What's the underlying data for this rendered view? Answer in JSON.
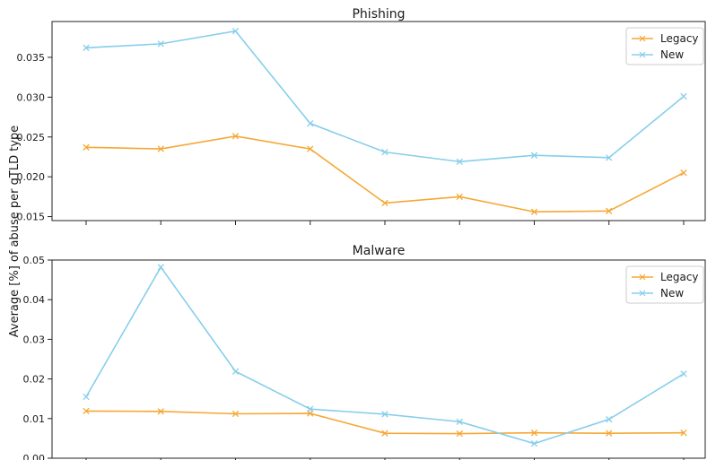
{
  "figure": {
    "ylabel": "Average [%] of abuse per gTLD type"
  },
  "chart_data": [
    {
      "type": "line",
      "title": "Phishing",
      "ylabel": "Average [%] of abuse per gTLD type",
      "x": [
        1,
        2,
        3,
        4,
        5,
        6,
        7,
        8,
        9
      ],
      "xlabel": "",
      "ylim": [
        0.0145,
        0.0395
      ],
      "yticks": [
        0.015,
        0.02,
        0.025,
        0.03,
        0.035
      ],
      "ytick_labels": [
        "0.015",
        "0.020",
        "0.025",
        "0.030",
        "0.035"
      ],
      "legend_loc": "top-right",
      "grid": false,
      "series": [
        {
          "name": "Legacy",
          "color": "#f5a835",
          "marker": "x",
          "values": [
            0.0237,
            0.0235,
            0.0251,
            0.0235,
            0.0167,
            0.0175,
            0.0156,
            0.0157,
            0.0205
          ]
        },
        {
          "name": "New",
          "color": "#87ceeb",
          "marker": "x",
          "values": [
            0.0362,
            0.0367,
            0.0383,
            0.0267,
            0.0231,
            0.0219,
            0.0227,
            0.0224,
            0.0301
          ]
        }
      ]
    },
    {
      "type": "line",
      "title": "Malware",
      "ylabel": "Average [%] of abuse per gTLD type",
      "x": [
        1,
        2,
        3,
        4,
        5,
        6,
        7,
        8,
        9
      ],
      "xlabel": "",
      "ylim": [
        0.0,
        0.05
      ],
      "yticks": [
        0.0,
        0.01,
        0.02,
        0.03,
        0.04,
        0.05
      ],
      "ytick_labels": [
        "0.00",
        "0.01",
        "0.02",
        "0.03",
        "0.04",
        "0.05"
      ],
      "legend_loc": "top-right",
      "grid": false,
      "series": [
        {
          "name": "Legacy",
          "color": "#f5a835",
          "marker": "x",
          "values": [
            0.0119,
            0.0118,
            0.0112,
            0.0113,
            0.0063,
            0.0062,
            0.0064,
            0.0063,
            0.0064
          ]
        },
        {
          "name": "New",
          "color": "#87ceeb",
          "marker": "x",
          "values": [
            0.0155,
            0.0482,
            0.0219,
            0.0124,
            0.0111,
            0.0092,
            0.0037,
            0.0098,
            0.0213
          ]
        }
      ]
    }
  ]
}
